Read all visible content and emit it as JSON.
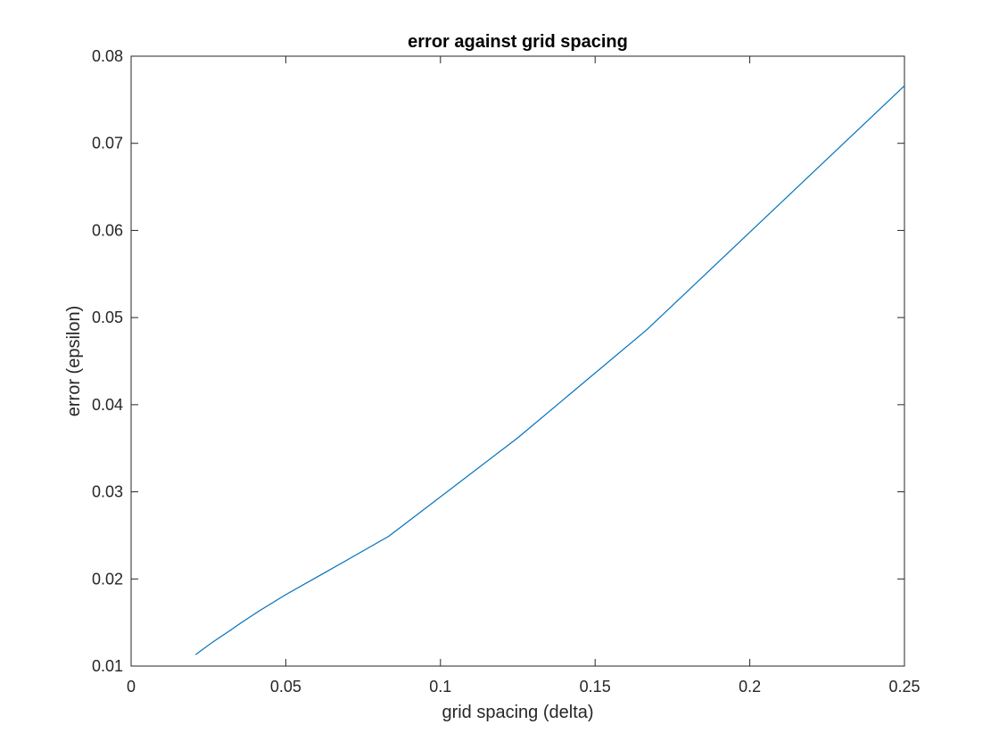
{
  "chart_data": {
    "type": "line",
    "title": "error against grid spacing",
    "xlabel": "grid spacing (delta)",
    "ylabel": "error (epsilon)",
    "xlim": [
      0,
      0.25
    ],
    "ylim": [
      0.01,
      0.08
    ],
    "xticks": [
      0,
      0.05,
      0.1,
      0.15,
      0.2,
      0.25
    ],
    "xtick_labels": [
      "0",
      "0.05",
      "0.1",
      "0.15",
      "0.2",
      "0.25"
    ],
    "yticks": [
      0.01,
      0.02,
      0.03,
      0.04,
      0.05,
      0.06,
      0.07,
      0.08
    ],
    "ytick_labels": [
      "0.01",
      "0.02",
      "0.03",
      "0.04",
      "0.05",
      "0.06",
      "0.07",
      "0.08"
    ],
    "grid": false,
    "box": true,
    "series": [
      {
        "color": "#0072BD",
        "x": [
          0.0208,
          0.0227,
          0.025,
          0.0278,
          0.03125,
          0.0357,
          0.0417,
          0.05,
          0.0625,
          0.0833,
          0.125,
          0.1667,
          0.25
        ],
        "y": [
          0.0113,
          0.0118,
          0.0124,
          0.0131,
          0.0139,
          0.015,
          0.0164,
          0.0182,
          0.0207,
          0.0249,
          0.0362,
          0.0486,
          0.0766
        ]
      }
    ]
  }
}
